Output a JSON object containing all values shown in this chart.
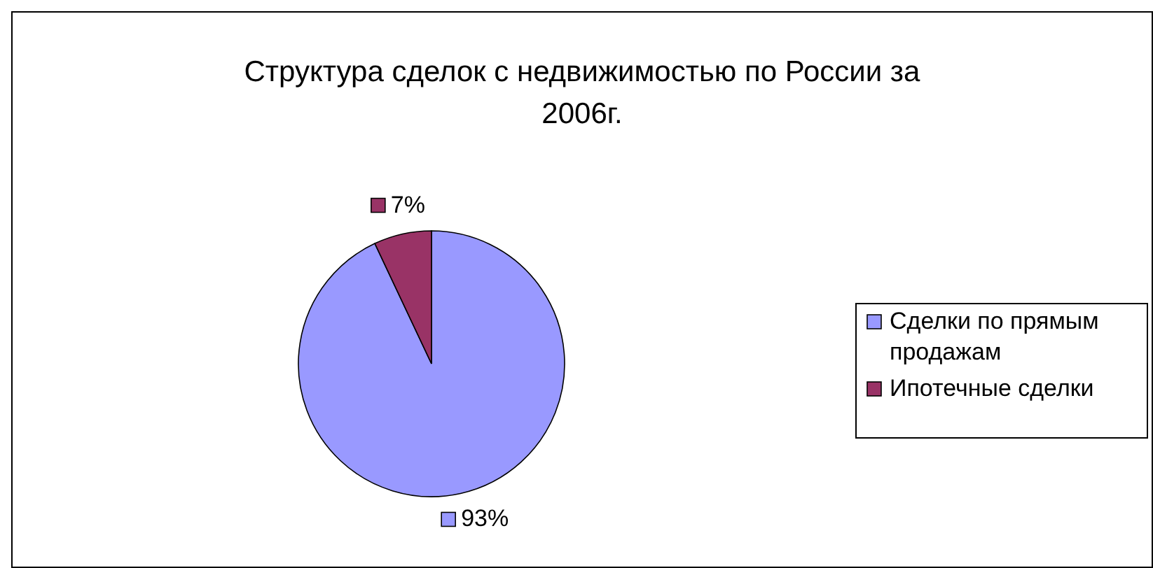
{
  "chart_data": {
    "type": "pie",
    "title": "Структура сделок с недвижимостью по России за 2006г.",
    "categories": [
      "Сделки по прямым продажам",
      "Ипотечные сделки"
    ],
    "values": [
      93,
      7
    ],
    "colors": [
      "#9999ff",
      "#993366"
    ],
    "value_labels": [
      "93%",
      "7%"
    ],
    "legend": "right"
  }
}
